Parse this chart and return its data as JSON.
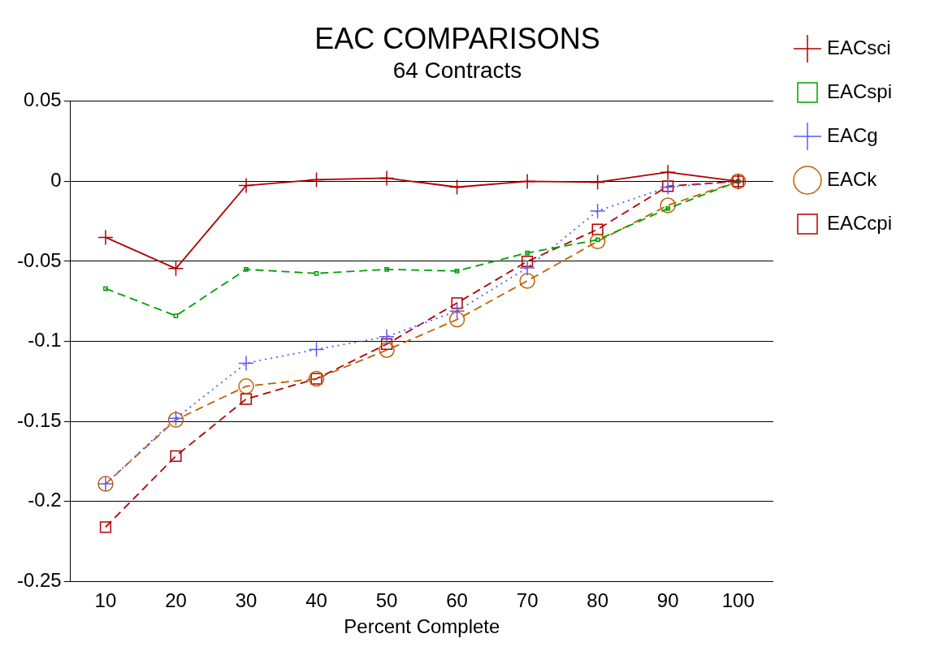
{
  "chart_data": {
    "type": "line",
    "title": "EAC COMPARISONS",
    "subtitle": "64 Contracts",
    "xlabel": "Percent Complete",
    "categories": [
      "10",
      "20",
      "30",
      "40",
      "50",
      "60",
      "70",
      "80",
      "90",
      "100"
    ],
    "series": [
      {
        "name": "EACsci",
        "color": "#b00000",
        "marker": "cross",
        "line_style": "solid",
        "values": [
          -0.035,
          -0.0545,
          -0.0026,
          0.001,
          0.002,
          -0.0036,
          0.0,
          -0.0005,
          0.0057,
          0.0
        ]
      },
      {
        "name": "EACspi",
        "color": "#00a000",
        "marker": "square",
        "line_style": "dashed",
        "values": [
          -0.067,
          -0.084,
          -0.055,
          -0.0575,
          -0.055,
          -0.056,
          -0.0447,
          -0.0365,
          -0.017,
          0.0
        ]
      },
      {
        "name": "EACg",
        "color": "#5a5aff",
        "marker": "cross",
        "line_style": "dotted",
        "values": [
          -0.189,
          -0.148,
          -0.1136,
          -0.105,
          -0.097,
          -0.081,
          -0.054,
          -0.0185,
          -0.0036,
          0.0
        ]
      },
      {
        "name": "EACk",
        "color": "#c06000",
        "marker": "circle",
        "line_style": "dashed",
        "values": [
          -0.189,
          -0.149,
          -0.128,
          -0.1233,
          -0.1054,
          -0.0863,
          -0.0622,
          -0.0375,
          -0.015,
          0.0
        ]
      },
      {
        "name": "EACcpi",
        "color": "#b00000",
        "marker": "square",
        "line_style": "dashed",
        "values": [
          -0.216,
          -0.1716,
          -0.136,
          -0.1233,
          -0.1017,
          -0.076,
          -0.05,
          -0.03,
          -0.003,
          0.0
        ]
      }
    ],
    "ylim": [
      -0.25,
      0.05
    ],
    "yticks": [
      0.05,
      0,
      -0.05,
      -0.1,
      -0.15,
      -0.2,
      -0.25
    ],
    "grid": "y",
    "legend": "right"
  }
}
